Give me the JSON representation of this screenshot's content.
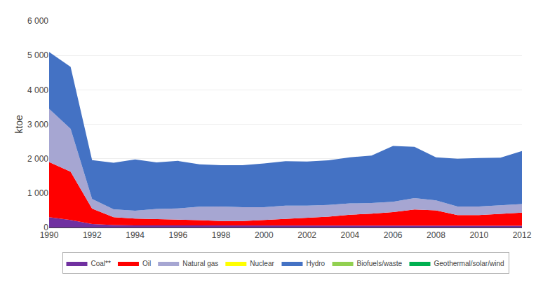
{
  "chart_data": {
    "type": "area",
    "stacked": true,
    "ylabel": "ktoe",
    "x": [
      1990,
      1991,
      1992,
      1993,
      1994,
      1995,
      1996,
      1997,
      1998,
      1999,
      2000,
      2001,
      2002,
      2003,
      2004,
      2005,
      2006,
      2007,
      2008,
      2009,
      2010,
      2011,
      2012
    ],
    "series": [
      {
        "name": "Coal**",
        "color": "#7030A0",
        "values": [
          300,
          220,
          100,
          70,
          60,
          60,
          55,
          55,
          50,
          50,
          50,
          55,
          55,
          55,
          60,
          60,
          60,
          65,
          60,
          50,
          50,
          50,
          50
        ]
      },
      {
        "name": "Oil",
        "color": "#FF0000",
        "values": [
          1600,
          1400,
          450,
          230,
          200,
          190,
          180,
          160,
          140,
          140,
          170,
          200,
          220,
          260,
          310,
          340,
          390,
          460,
          440,
          310,
          310,
          340,
          380
        ]
      },
      {
        "name": "Natural gas",
        "color": "#A6A6D2",
        "values": [
          1550,
          1250,
          280,
          230,
          230,
          290,
          320,
          390,
          420,
          400,
          370,
          380,
          360,
          340,
          330,
          310,
          300,
          330,
          290,
          250,
          250,
          260,
          250
        ]
      },
      {
        "name": "Nuclear",
        "color": "#FFFF00",
        "values": [
          0,
          0,
          0,
          0,
          0,
          0,
          0,
          0,
          0,
          0,
          0,
          0,
          0,
          0,
          0,
          0,
          0,
          0,
          0,
          0,
          0,
          0,
          0
        ]
      },
      {
        "name": "Hydro",
        "color": "#4472C4",
        "values": [
          1650,
          1800,
          1130,
          1350,
          1490,
          1350,
          1380,
          1230,
          1200,
          1220,
          1270,
          1290,
          1280,
          1300,
          1340,
          1380,
          1620,
          1490,
          1250,
          1390,
          1410,
          1380,
          1540
        ]
      },
      {
        "name": "Biofuels/waste",
        "color": "#92D050",
        "values": [
          0,
          0,
          0,
          0,
          0,
          0,
          0,
          0,
          0,
          0,
          0,
          0,
          0,
          0,
          0,
          0,
          0,
          0,
          0,
          0,
          0,
          0,
          0
        ]
      },
      {
        "name": "Geothermal/solar/wind",
        "color": "#00B050",
        "values": [
          0,
          0,
          0,
          0,
          0,
          0,
          0,
          0,
          0,
          0,
          0,
          0,
          0,
          0,
          0,
          0,
          0,
          0,
          0,
          0,
          0,
          0,
          0
        ]
      }
    ],
    "xlim": [
      1990,
      2012
    ],
    "xticks": [
      1990,
      1992,
      1994,
      1996,
      1998,
      2000,
      2002,
      2004,
      2006,
      2008,
      2010,
      2012
    ],
    "ylim": [
      0,
      6000
    ],
    "yticks": [
      {
        "value": 0,
        "label": "0"
      },
      {
        "value": 1000,
        "label": "1 000"
      },
      {
        "value": 2000,
        "label": "2 000"
      },
      {
        "value": 3000,
        "label": "3 000"
      },
      {
        "value": 4000,
        "label": "4 000"
      },
      {
        "value": 5000,
        "label": "5 000"
      },
      {
        "value": 6000,
        "label": "6 000"
      }
    ],
    "grid": true,
    "legend": "bottom"
  }
}
